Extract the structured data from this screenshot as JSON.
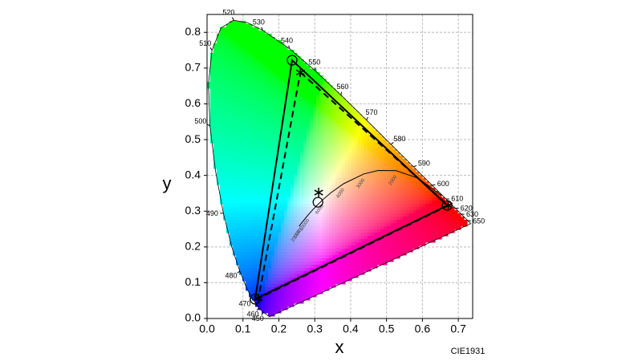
{
  "chart_data": {
    "type": "chromaticity",
    "xlabel": "x",
    "ylabel": "y",
    "footnote": "CIE1931",
    "xlim": [
      0,
      0.74
    ],
    "ylim": [
      0,
      0.85
    ],
    "xticks": [
      {
        "value": 0,
        "label": "0.0"
      },
      {
        "value": 0.1,
        "label": "0.1"
      },
      {
        "value": 0.2,
        "label": "0.2"
      },
      {
        "value": 0.3,
        "label": "0.3"
      },
      {
        "value": 0.4,
        "label": "0.4"
      },
      {
        "value": 0.5,
        "label": "0.5"
      },
      {
        "value": 0.6,
        "label": "0.6"
      },
      {
        "value": 0.7,
        "label": "0.7"
      }
    ],
    "yticks": [
      {
        "value": 0,
        "label": "0.0"
      },
      {
        "value": 0.1,
        "label": "0.1"
      },
      {
        "value": 0.2,
        "label": "0.2"
      },
      {
        "value": 0.3,
        "label": "0.3"
      },
      {
        "value": 0.4,
        "label": "0.4"
      },
      {
        "value": 0.5,
        "label": "0.5"
      },
      {
        "value": 0.6,
        "label": "0.6"
      },
      {
        "value": 0.7,
        "label": "0.7"
      },
      {
        "value": 0.8,
        "label": "0.8"
      }
    ],
    "grid": true,
    "locus": {
      "wavelengths": [
        null,
        450,
        460,
        470,
        null,
        480,
        null,
        490,
        null,
        500,
        null,
        510,
        null,
        520,
        null,
        530,
        540,
        550,
        560,
        570,
        580,
        590,
        600,
        610,
        620,
        630,
        650,
        null
      ],
      "x": [
        0.1741,
        0.1566,
        0.144,
        0.1241,
        0.1096,
        0.0913,
        0.0687,
        0.0454,
        0.0235,
        0.0082,
        0.0039,
        0.0139,
        0.0389,
        0.0743,
        0.1142,
        0.1547,
        0.2296,
        0.3016,
        0.3731,
        0.4441,
        0.5125,
        0.5752,
        0.627,
        0.6658,
        0.6915,
        0.7079,
        0.726,
        0.7347
      ],
      "y": [
        0.005,
        0.0177,
        0.0297,
        0.0578,
        0.0868,
        0.1327,
        0.2007,
        0.295,
        0.4127,
        0.5384,
        0.6548,
        0.7502,
        0.812,
        0.8338,
        0.8262,
        0.8059,
        0.7543,
        0.6923,
        0.6245,
        0.5547,
        0.4866,
        0.4242,
        0.3725,
        0.334,
        0.3083,
        0.292,
        0.274,
        0.2653
      ]
    },
    "planckian": {
      "temperatures": [
        null,
        null,
        2000,
        null,
        3000,
        4000,
        null,
        6000,
        null,
        10000,
        15000,
        20000
      ],
      "x": [
        0.6528,
        0.5857,
        0.5267,
        0.477,
        0.4369,
        0.3805,
        0.3451,
        0.3221,
        0.2952,
        0.2807,
        0.2637,
        0.2565
      ],
      "y": [
        0.3444,
        0.3931,
        0.4133,
        0.4137,
        0.4041,
        0.3768,
        0.3516,
        0.3318,
        0.3048,
        0.2884,
        0.2674,
        0.2577
      ]
    },
    "gamuts": [
      {
        "line_style": "solid",
        "marker": "circle",
        "x": [
          0.237,
          0.669,
          0.134
        ],
        "y": [
          0.722,
          0.316,
          0.054
        ]
      },
      {
        "line_style": "dashed",
        "marker": "star",
        "x": [
          0.26,
          0.672,
          0.143
        ],
        "y": [
          0.688,
          0.316,
          0.056
        ]
      }
    ],
    "white_points": [
      {
        "marker": "circle",
        "x": 0.309,
        "y": 0.325
      },
      {
        "marker": "star",
        "x": 0.311,
        "y": 0.352
      }
    ]
  }
}
